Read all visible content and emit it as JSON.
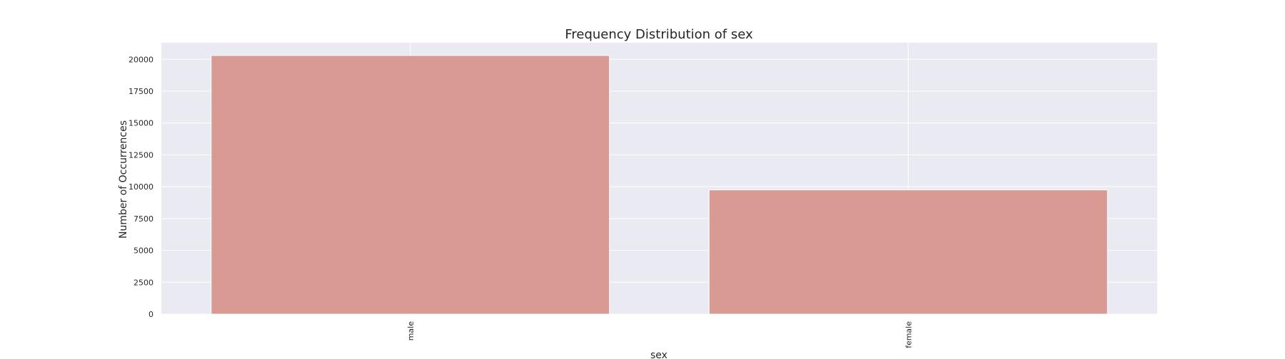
{
  "chart_data": {
    "type": "bar",
    "title": "Frequency Distribution of sex",
    "xlabel": "sex",
    "ylabel": "Number of Occurrences",
    "categories": [
      "male",
      "female"
    ],
    "values": [
      20300,
      9750
    ],
    "ylim": [
      0,
      21300
    ],
    "yticks": [
      0,
      2500,
      5000,
      7500,
      10000,
      12500,
      15000,
      17500,
      20000
    ],
    "ytick_labels": [
      "0",
      "2500",
      "5000",
      "7500",
      "10000",
      "12500",
      "15000",
      "17500",
      "20000"
    ],
    "grid": true,
    "x_tick_rotation": "vertical",
    "colors": {
      "bar": "#d89a93",
      "plot_background": "#eaeaf2",
      "grid": "#ffffff",
      "text": "#262626"
    }
  }
}
